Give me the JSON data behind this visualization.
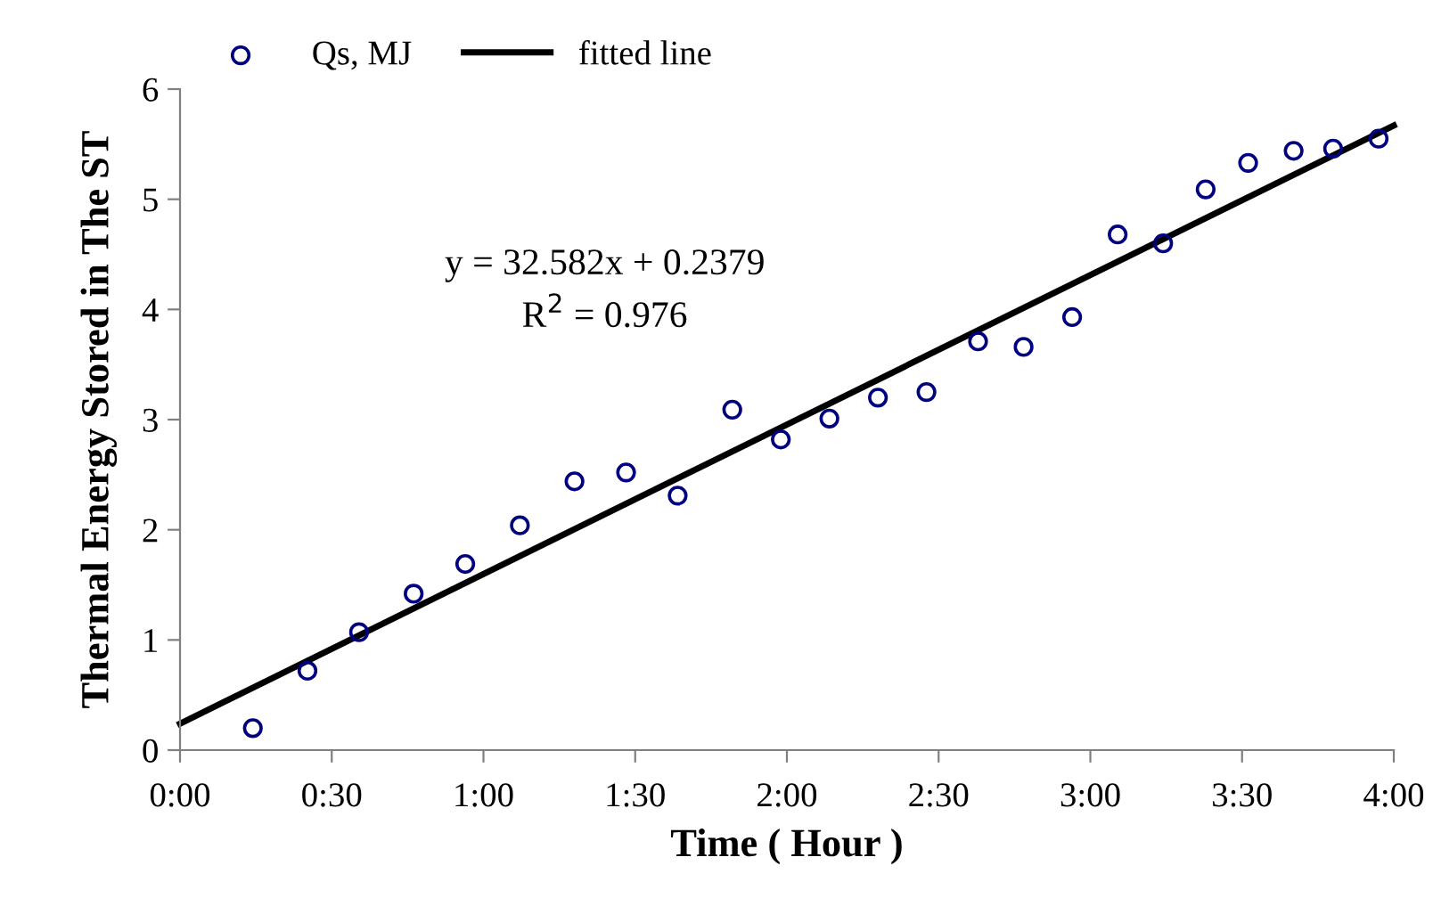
{
  "chart_data": {
    "type": "scatter",
    "xlabel": "Time ( Hour )",
    "ylabel": "Thermal Energy Stored in The ST",
    "series": [
      {
        "name": "Qs, MJ",
        "color": "#000080",
        "marker": "circle",
        "x": [
          0.24,
          0.42,
          0.59,
          0.77,
          0.94,
          1.12,
          1.3,
          1.47,
          1.64,
          1.82,
          1.98,
          2.14,
          2.3,
          2.46,
          2.63,
          2.78,
          2.94,
          3.09,
          3.24,
          3.38,
          3.52,
          3.67,
          3.8,
          3.95
        ],
        "values": [
          0.2,
          0.72,
          1.07,
          1.42,
          1.69,
          2.04,
          2.44,
          2.52,
          2.31,
          3.09,
          2.82,
          3.01,
          3.2,
          3.25,
          3.71,
          3.66,
          3.93,
          4.68,
          4.6,
          5.09,
          5.33,
          5.44,
          5.46,
          5.55
        ]
      },
      {
        "name": "fitted line",
        "type": "line",
        "color": "#000000",
        "marker": "none",
        "line_style": "solid",
        "x": [
          0,
          4
        ],
        "values": [
          0.24,
          5.67
        ]
      }
    ],
    "xlim": [
      0,
      4
    ],
    "xticks": [
      {
        "value": 0,
        "label": "0:00"
      },
      {
        "value": 0.5,
        "label": "0:30"
      },
      {
        "value": 1,
        "label": "1:00"
      },
      {
        "value": 1.5,
        "label": "1:30"
      },
      {
        "value": 2,
        "label": "2:00"
      },
      {
        "value": 2.5,
        "label": "2:30"
      },
      {
        "value": 3,
        "label": "3:00"
      },
      {
        "value": 3.5,
        "label": "3:30"
      },
      {
        "value": 4,
        "label": "4:00"
      }
    ],
    "ylim": [
      0,
      6
    ],
    "yticks": [
      0,
      1,
      2,
      3,
      4,
      5,
      6
    ],
    "annotations": [
      "y = 32.582x + 0.2379",
      "R$^{2}$ = 0.976"
    ],
    "legend": "top",
    "grid": false
  }
}
